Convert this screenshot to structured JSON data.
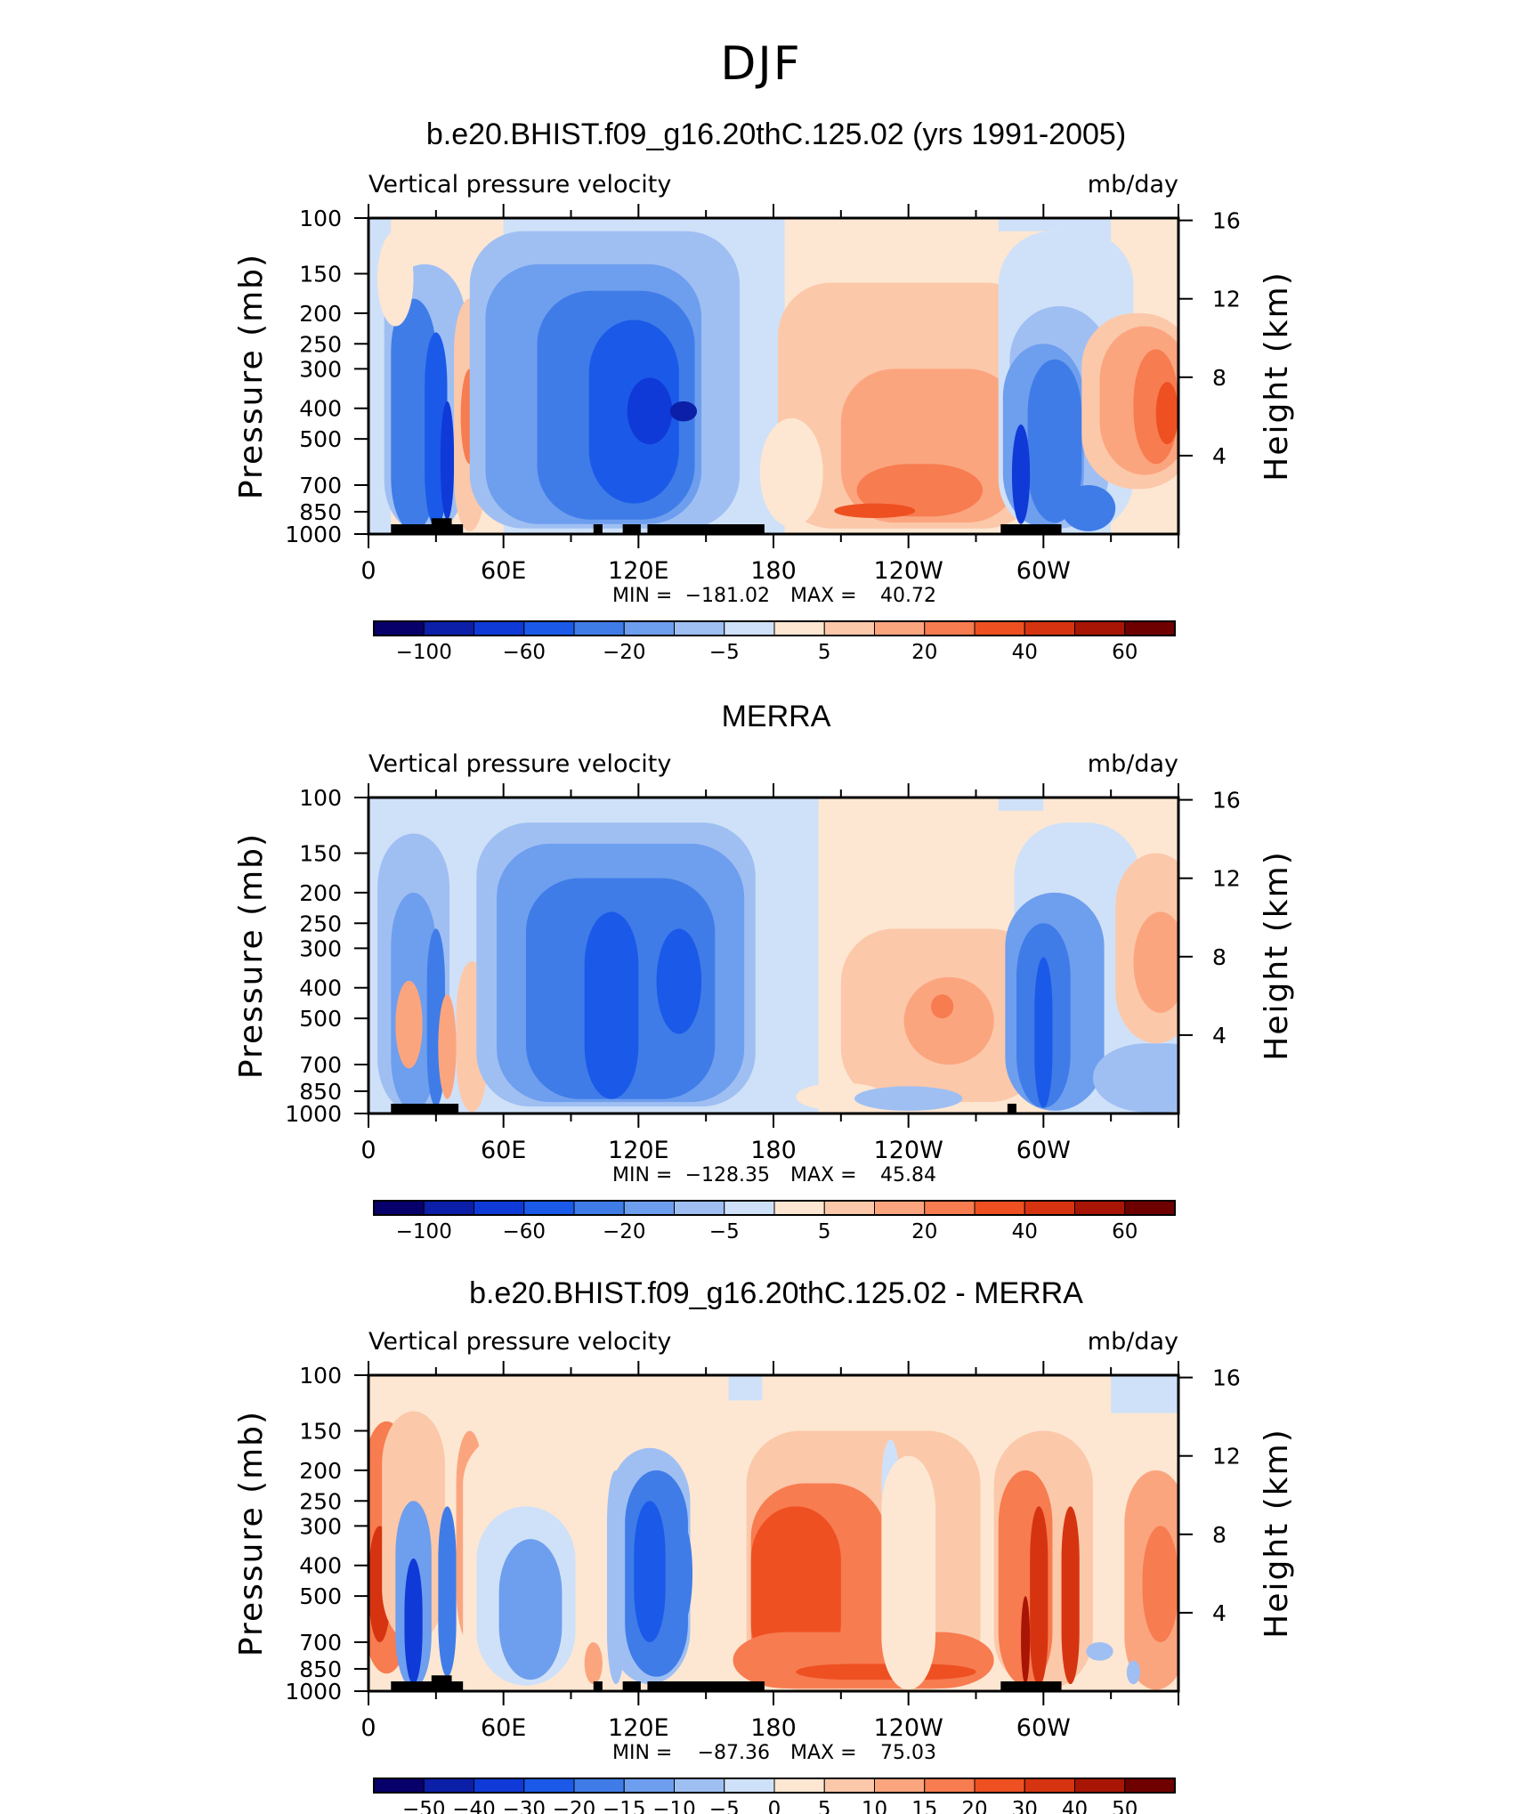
{
  "figure": {
    "title": "DJF",
    "colors": {
      "cold_scale": [
        "#08006a",
        "#0b1fa8",
        "#0f3ad8",
        "#1b5ae8",
        "#3f7ce8",
        "#6e9eee",
        "#9fbff3",
        "#cfe1f8"
      ],
      "warm_scale": [
        "#fde7d2",
        "#fcc8aa",
        "#fba57f",
        "#f77c50",
        "#ee5022",
        "#d63410",
        "#a81505",
        "#6e0000"
      ],
      "land_mask": "#000000"
    }
  },
  "chart_data": [
    {
      "type": "heatmap",
      "title": "b.e20.BHIST.f09_g16.20thC.125.02 (yrs 1991-2005)",
      "left_label": "Vertical pressure velocity",
      "right_label": "mb/day",
      "ylabel": "Pressure (mb)",
      "ylabel_right": "Height (km)",
      "x_ticks": [
        "0",
        "60E",
        "120E",
        "180",
        "120W",
        "60W"
      ],
      "y_ticks": [
        "100",
        "150",
        "200",
        "250",
        "300",
        "400",
        "500",
        "700",
        "850",
        "1000"
      ],
      "height_ticks": [
        "16",
        "12",
        "8",
        "4"
      ],
      "min_label": "MIN =",
      "min_value": "−181.02",
      "max_label": "MAX =",
      "max_value": "40.72",
      "colorbar_labels": [
        "−100",
        "−60",
        "−20",
        "−5",
        "5",
        "20",
        "40",
        "60"
      ],
      "xlim": [
        0,
        360
      ],
      "ylim": [
        1000,
        100
      ]
    },
    {
      "type": "heatmap",
      "title": "MERRA",
      "left_label": "Vertical pressure velocity",
      "right_label": "mb/day",
      "ylabel": "Pressure (mb)",
      "ylabel_right": "Height (km)",
      "x_ticks": [
        "0",
        "60E",
        "120E",
        "180",
        "120W",
        "60W"
      ],
      "y_ticks": [
        "100",
        "150",
        "200",
        "250",
        "300",
        "400",
        "500",
        "700",
        "850",
        "1000"
      ],
      "height_ticks": [
        "16",
        "12",
        "8",
        "4"
      ],
      "min_label": "MIN =",
      "min_value": "−128.35",
      "max_label": "MAX =",
      "max_value": "45.84",
      "colorbar_labels": [
        "−100",
        "−60",
        "−20",
        "−5",
        "5",
        "20",
        "40",
        "60"
      ],
      "xlim": [
        0,
        360
      ],
      "ylim": [
        1000,
        100
      ]
    },
    {
      "type": "heatmap",
      "title": "b.e20.BHIST.f09_g16.20thC.125.02 - MERRA",
      "left_label": "Vertical pressure velocity",
      "right_label": "mb/day",
      "ylabel": "Pressure (mb)",
      "ylabel_right": "Height (km)",
      "x_ticks": [
        "0",
        "60E",
        "120E",
        "180",
        "120W",
        "60W"
      ],
      "y_ticks": [
        "100",
        "150",
        "200",
        "250",
        "300",
        "400",
        "500",
        "700",
        "850",
        "1000"
      ],
      "height_ticks": [
        "16",
        "12",
        "8",
        "4"
      ],
      "min_label": "MIN =",
      "min_value": "−87.36",
      "max_label": "MAX =",
      "max_value": "75.03",
      "colorbar_labels": [
        "−50",
        "−40",
        "−30",
        "−20",
        "−15",
        "−10",
        "−5",
        "0",
        "5",
        "10",
        "15",
        "20",
        "30",
        "40",
        "50"
      ],
      "xlim": [
        0,
        360
      ],
      "ylim": [
        1000,
        100
      ]
    }
  ]
}
